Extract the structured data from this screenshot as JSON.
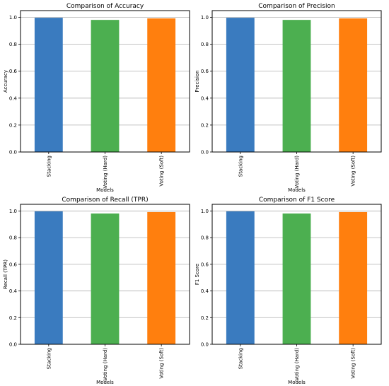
{
  "chart_data": [
    {
      "type": "bar",
      "title": "Comparison of Accuracy",
      "xlabel": "Models",
      "ylabel": "Accuracy",
      "categories": [
        "Stacking",
        "Voting (Hard)",
        "Voting (Soft)"
      ],
      "values": [
        0.997,
        0.981,
        0.992
      ],
      "colors": [
        "#3a7bbf",
        "#4caf50",
        "#ff7f0e"
      ],
      "ylim": [
        0,
        1.05
      ],
      "yticks": [
        "0.0",
        "0.2",
        "0.4",
        "0.6",
        "0.8",
        "1.0"
      ],
      "grid": "horizontal"
    },
    {
      "type": "bar",
      "title": "Comparison of Precision",
      "xlabel": "Models",
      "ylabel": "Precision",
      "categories": [
        "Stacking",
        "Voting (Hard)",
        "Voting (Soft)"
      ],
      "values": [
        0.997,
        0.981,
        0.992
      ],
      "colors": [
        "#3a7bbf",
        "#4caf50",
        "#ff7f0e"
      ],
      "ylim": [
        0,
        1.05
      ],
      "yticks": [
        "0.0",
        "0.2",
        "0.4",
        "0.6",
        "0.8",
        "1.0"
      ],
      "grid": "horizontal"
    },
    {
      "type": "bar",
      "title": "Comparison of Recall (TPR)",
      "xlabel": "Models",
      "ylabel": "Recall (TPR)",
      "categories": [
        "Stacking",
        "Voting (Hard)",
        "Voting (Soft)"
      ],
      "values": [
        0.997,
        0.981,
        0.992
      ],
      "colors": [
        "#3a7bbf",
        "#4caf50",
        "#ff7f0e"
      ],
      "ylim": [
        0,
        1.05
      ],
      "yticks": [
        "0.0",
        "0.2",
        "0.4",
        "0.6",
        "0.8",
        "1.0"
      ],
      "grid": "horizontal"
    },
    {
      "type": "bar",
      "title": "Comparison of F1 Score",
      "xlabel": "Models",
      "ylabel": "F1 Score",
      "categories": [
        "Stacking",
        "Voting (Hard)",
        "Voting (Soft)"
      ],
      "values": [
        0.997,
        0.981,
        0.992
      ],
      "colors": [
        "#3a7bbf",
        "#4caf50",
        "#ff7f0e"
      ],
      "ylim": [
        0,
        1.05
      ],
      "yticks": [
        "0.0",
        "0.2",
        "0.4",
        "0.6",
        "0.8",
        "1.0"
      ],
      "grid": "horizontal"
    }
  ]
}
